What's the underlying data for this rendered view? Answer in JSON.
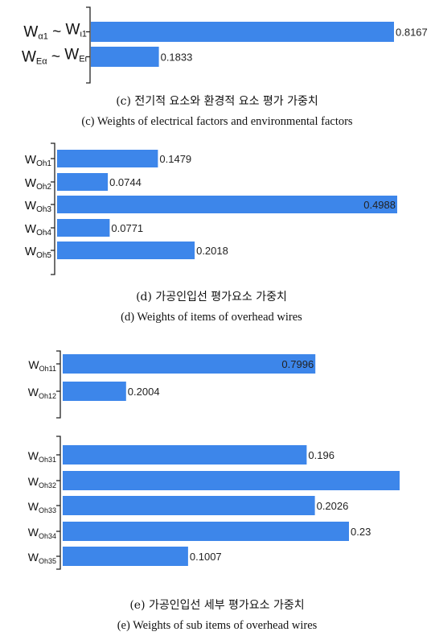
{
  "colors": {
    "bar": "#3d86ea",
    "text": "#111111",
    "axis": "#222222"
  },
  "chart_data": [
    {
      "id": "c",
      "type": "bar",
      "orientation": "horizontal",
      "categories": [
        {
          "base": "W",
          "sub": "α1",
          "sep": " ~ ",
          "base2": "W",
          "sub2": "ι1"
        },
        {
          "base": "W",
          "sub": "Eα",
          "sep": " ~ ",
          "base2": "W",
          "sub2": "Eι"
        }
      ],
      "values": [
        0.8167,
        0.1833
      ],
      "value_labels": [
        "0.8167",
        "0.1833"
      ],
      "xlim": [
        0,
        0.8167
      ],
      "caption_ko": "(c) 전기적 요소와 환경적 요소 평가 가중치",
      "caption_en": "(c) Weights of electrical factors and environmental factors"
    },
    {
      "id": "d",
      "type": "bar",
      "orientation": "horizontal",
      "categories": [
        {
          "base": "W",
          "sub": "Oh1"
        },
        {
          "base": "W",
          "sub": "Oh2"
        },
        {
          "base": "W",
          "sub": "Oh3"
        },
        {
          "base": "W",
          "sub": "Oh4"
        },
        {
          "base": "W",
          "sub": "Oh5"
        }
      ],
      "values": [
        0.1479,
        0.0744,
        0.4988,
        0.0771,
        0.2018
      ],
      "value_labels": [
        "0.1479",
        "0.0744",
        "0.4988",
        "0.0771",
        "0.2018"
      ],
      "xlim": [
        0,
        0.4988
      ],
      "caption_ko": "(d) 가공인입선 평가요소 가중치",
      "caption_en": "(d) Weights of items of overhead wires"
    },
    {
      "id": "e1",
      "type": "bar",
      "orientation": "horizontal",
      "categories": [
        {
          "base": "W",
          "sub": "Oh11"
        },
        {
          "base": "W",
          "sub": "Oh12"
        }
      ],
      "values": [
        0.7996,
        0.2004
      ],
      "value_labels": [
        "0.7996",
        "0.2004"
      ],
      "xlim": [
        0,
        1.0
      ]
    },
    {
      "id": "e2",
      "type": "bar",
      "orientation": "horizontal",
      "categories": [
        {
          "base": "W",
          "sub": "Oh31"
        },
        {
          "base": "W",
          "sub": "Oh32"
        },
        {
          "base": "W",
          "sub": "Oh33"
        },
        {
          "base": "W",
          "sub": "Oh34"
        },
        {
          "base": "W",
          "sub": "Oh35"
        }
      ],
      "values": [
        0.196,
        0.2707,
        0.2026,
        0.23,
        0.1007
      ],
      "value_labels": [
        "0.196",
        "",
        "0.2026",
        "0.23",
        "0.1007"
      ],
      "xlim": [
        0,
        0.2707
      ],
      "caption_ko": "(e) 가공인입선 세부 평가요소 가중치",
      "caption_en": "(e) Weights of sub items of overhead wires"
    }
  ]
}
